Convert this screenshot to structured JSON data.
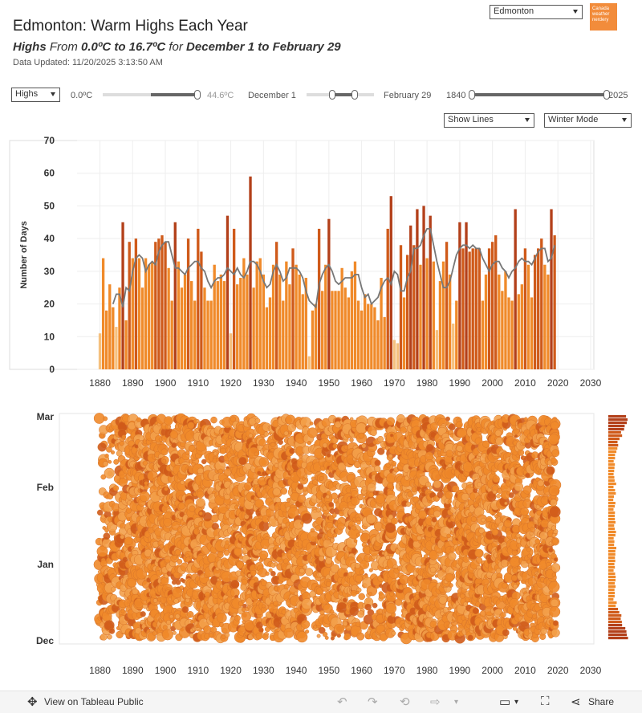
{
  "header": {
    "title": "Edmonton: Warm Highs Each Year",
    "subtitle_highs": "Highs",
    "subtitle_from": "From",
    "subtitle_range": "0.0ºC to 16.7ºC",
    "subtitle_for": "for",
    "subtitle_dates": "December 1 to February 29",
    "updated": "Data Updated: 11/20/2025 3:13:50 AM",
    "city_select": "Edmonton",
    "logo_text": "Canada weather nerdery"
  },
  "controls": {
    "measure_select": "Highs",
    "temp_min": "0.0ºC",
    "temp_max": "44.6ºC",
    "temp_range_fraction": [
      0.0,
      0.37
    ],
    "date_min": "December 1",
    "date_max": "February 29",
    "date_range_fraction": [
      0.38,
      0.72
    ],
    "year_min": "1840",
    "year_max": "2025",
    "year_range_fraction": [
      0.0,
      1.0
    ],
    "lines_select": "Show Lines",
    "mode_select": "Winter Mode"
  },
  "colors": {
    "light": "#f5c07e",
    "mid": "#f08a2a",
    "dark": "#cf5a1a",
    "deep": "#b3401a",
    "line": "#777777",
    "grid": "#eeeeee"
  },
  "chart_data": [
    {
      "type": "bar",
      "title": "",
      "ylabel": "Number of Days",
      "xlabel": "",
      "xlim": [
        1873,
        2031
      ],
      "ylim": [
        0,
        70
      ],
      "yticks": [
        "0",
        "10",
        "20",
        "30",
        "40",
        "50",
        "60",
        "70"
      ],
      "xticks": [
        "1880",
        "1890",
        "1900",
        "1910",
        "1920",
        "1930",
        "1940",
        "1950",
        "1960",
        "1970",
        "1980",
        "1990",
        "2000",
        "2010",
        "2020",
        "2030"
      ],
      "start_year": 1880,
      "values": [
        11,
        34,
        18,
        26,
        19,
        13,
        25,
        45,
        15,
        39,
        34,
        40,
        34,
        25,
        34,
        32,
        33,
        39,
        40,
        41,
        39,
        31,
        21,
        45,
        33,
        25,
        29,
        40,
        27,
        21,
        43,
        36,
        25,
        21,
        21,
        32,
        27,
        29,
        27,
        47,
        11,
        43,
        26,
        28,
        34,
        29,
        59,
        25,
        33,
        34,
        29,
        19,
        22,
        32,
        39,
        29,
        21,
        33,
        26,
        37,
        32,
        29,
        23,
        28,
        4,
        18,
        20,
        43,
        24,
        32,
        46,
        24,
        24,
        24,
        31,
        25,
        22,
        30,
        33,
        21,
        18,
        23,
        20,
        20,
        19,
        15,
        28,
        16,
        43,
        53,
        9,
        8,
        38,
        22,
        35,
        44,
        38,
        49,
        32,
        50,
        34,
        47,
        33,
        12,
        27,
        33,
        39,
        29,
        14,
        21,
        45,
        37,
        45,
        36,
        37,
        37,
        37,
        21,
        29,
        37,
        39,
        41,
        29,
        24,
        30,
        22,
        21,
        49,
        23,
        26,
        37,
        32,
        22,
        35,
        37,
        40,
        32,
        29,
        49,
        41
      ],
      "avg_line": [
        null,
        null,
        null,
        null,
        20,
        23,
        23,
        19,
        25,
        24,
        30,
        34,
        35,
        34,
        30,
        32,
        33,
        32,
        36,
        38,
        39,
        39,
        35,
        31,
        31,
        30,
        29,
        31,
        32,
        33,
        33,
        31,
        30,
        27,
        25,
        27,
        28,
        28,
        29,
        31,
        30,
        29,
        31,
        29,
        28,
        30,
        33,
        33,
        32,
        30,
        27,
        25,
        26,
        30,
        32,
        30,
        27,
        28,
        31,
        31,
        31,
        30,
        28,
        24,
        21,
        20,
        19,
        26,
        29,
        31,
        32,
        30,
        27,
        26,
        27,
        28,
        28,
        28,
        29,
        29,
        25,
        22,
        23,
        20,
        21,
        22,
        25,
        27,
        28,
        26,
        30,
        29,
        24,
        24,
        28,
        30,
        37,
        37,
        38,
        41,
        43,
        43,
        38,
        33,
        29,
        25,
        25,
        27,
        31,
        35,
        37,
        38,
        38,
        37,
        38,
        37,
        37,
        34,
        32,
        30,
        32,
        33,
        33,
        31,
        30,
        28,
        30,
        31,
        33,
        34,
        33,
        33,
        32,
        34,
        36,
        37,
        37,
        33,
        34,
        38
      ]
    },
    {
      "type": "scatter",
      "title": "",
      "xlim": [
        1873,
        2031
      ],
      "y_categories": [
        "Dec",
        "Jan",
        "Feb",
        "Mar"
      ],
      "xticks": [
        "1880",
        "1890",
        "1900",
        "1910",
        "1920",
        "1930",
        "1940",
        "1950",
        "1960",
        "1970",
        "1980",
        "1990",
        "2000",
        "2010",
        "2020",
        "2030"
      ],
      "description_of_points": "each circle is one day in the date range with a high in the selected temperature range; size and colour by temperature"
    }
  ]
}
